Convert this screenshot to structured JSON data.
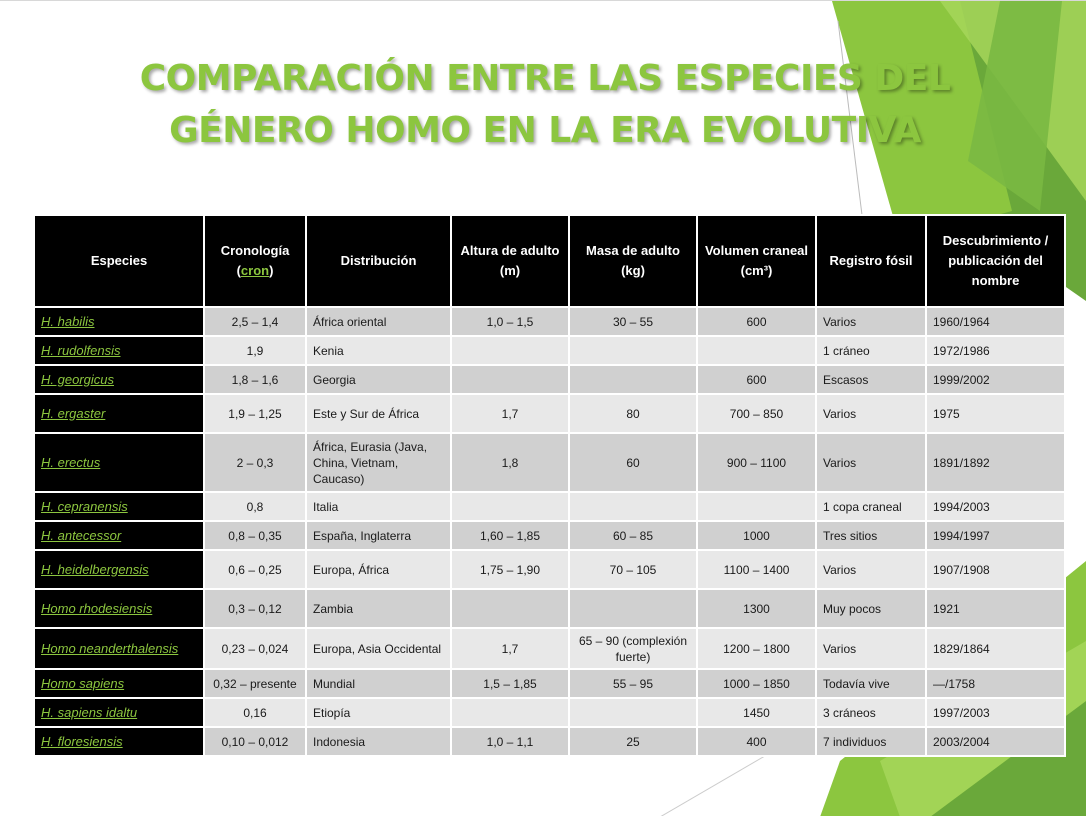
{
  "slide": {
    "title_line1": "COMPARACIÓN ENTRE LAS ESPECIES DEL",
    "title_line2": "GÉNERO HOMO EN LA ERA EVOLUTIVA",
    "accent_color": "#8cc63f"
  },
  "table": {
    "headers": {
      "species": "Especies",
      "chronology_prefix": "Cronología",
      "chronology_open": "(",
      "chronology_link": "cron",
      "chronology_close": ")",
      "distribution": "Distribución",
      "height": "Altura de adulto (m)",
      "mass": "Masa de adulto (kg)",
      "volume": "Volumen craneal (cm³)",
      "fossil": "Registro fósil",
      "discovery": "Descubrimiento / publicación del nombre"
    },
    "rows": [
      {
        "species": "H. habilis",
        "chronology": "2,5 – 1,4",
        "distribution": "África oriental",
        "height": "1,0 – 1,5",
        "mass": "30 – 55",
        "volume": "600",
        "fossil": "Varios",
        "discovery": "1960/1964"
      },
      {
        "species": "H. rudolfensis",
        "chronology": "1,9",
        "distribution": "Kenia",
        "height": "",
        "mass": "",
        "volume": "",
        "fossil": "1 cráneo",
        "discovery": "1972/1986"
      },
      {
        "species": "H. georgicus",
        "chronology": "1,8 – 1,6",
        "distribution": "Georgia",
        "height": "",
        "mass": "",
        "volume": "600",
        "fossil": "Escasos",
        "discovery": "1999/2002"
      },
      {
        "species": "H. ergaster",
        "chronology": "1,9 – 1,25",
        "distribution": "Este y Sur de África",
        "height": "1,7",
        "mass": "80",
        "volume": "700 – 850",
        "fossil": "Varios",
        "discovery": "1975"
      },
      {
        "species": "H. erectus",
        "chronology": "2 – 0,3",
        "distribution": "África, Eurasia (Java, China, Vietnam, Caucaso)",
        "height": "1,8",
        "mass": "60",
        "volume": "900 – 1100",
        "fossil": "Varios",
        "discovery": "1891/1892"
      },
      {
        "species": "H. cepranensis",
        "chronology": "0,8",
        "distribution": "Italia",
        "height": "",
        "mass": "",
        "volume": "",
        "fossil": "1 copa craneal",
        "discovery": "1994/2003"
      },
      {
        "species": "H. antecessor",
        "chronology": "0,8 – 0,35",
        "distribution": "España, Inglaterra",
        "height": "1,60 – 1,85",
        "mass": "60 – 85",
        "volume": "1000",
        "fossil": "Tres sitios",
        "discovery": "1994/1997"
      },
      {
        "species": "H. heidelbergensis",
        "chronology": "0,6 – 0,25",
        "distribution": "Europa, África",
        "height": "1,75 – 1,90",
        "mass": "70 – 105",
        "volume": "1100 – 1400",
        "fossil": "Varios",
        "discovery": "1907/1908"
      },
      {
        "species": "Homo rhodesiensis",
        "chronology": "0,3 – 0,12",
        "distribution": "Zambia",
        "height": "",
        "mass": "",
        "volume": "1300",
        "fossil": "Muy pocos",
        "discovery": "1921"
      },
      {
        "species": "Homo neanderthalensis",
        "chronology": "0,23 – 0,024",
        "distribution": "Europa, Asia Occidental",
        "height": "1,7",
        "mass": "65 – 90 (complexión fuerte)",
        "volume": "1200 – 1800",
        "fossil": "Varios",
        "discovery": "1829/1864"
      },
      {
        "species": "Homo sapiens",
        "chronology": "0,32 – presente",
        "distribution": "Mundial",
        "height": "1,5 – 1,85",
        "mass": "55 – 95",
        "volume": "1000 – 1850",
        "fossil": "Todavía vive",
        "discovery": "—/1758"
      },
      {
        "species": "H. sapiens idaltu",
        "chronology": "0,16",
        "distribution": "Etiopía",
        "height": "",
        "mass": "",
        "volume": "1450",
        "fossil": "3 cráneos",
        "discovery": "1997/2003"
      },
      {
        "species": "H. floresiensis",
        "chronology": "0,10 – 0,012",
        "distribution": "Indonesia",
        "height": "1,0 – 1,1",
        "mass": "25",
        "volume": "400",
        "fossil": "7 individuos",
        "discovery": "2003/2004"
      }
    ]
  }
}
